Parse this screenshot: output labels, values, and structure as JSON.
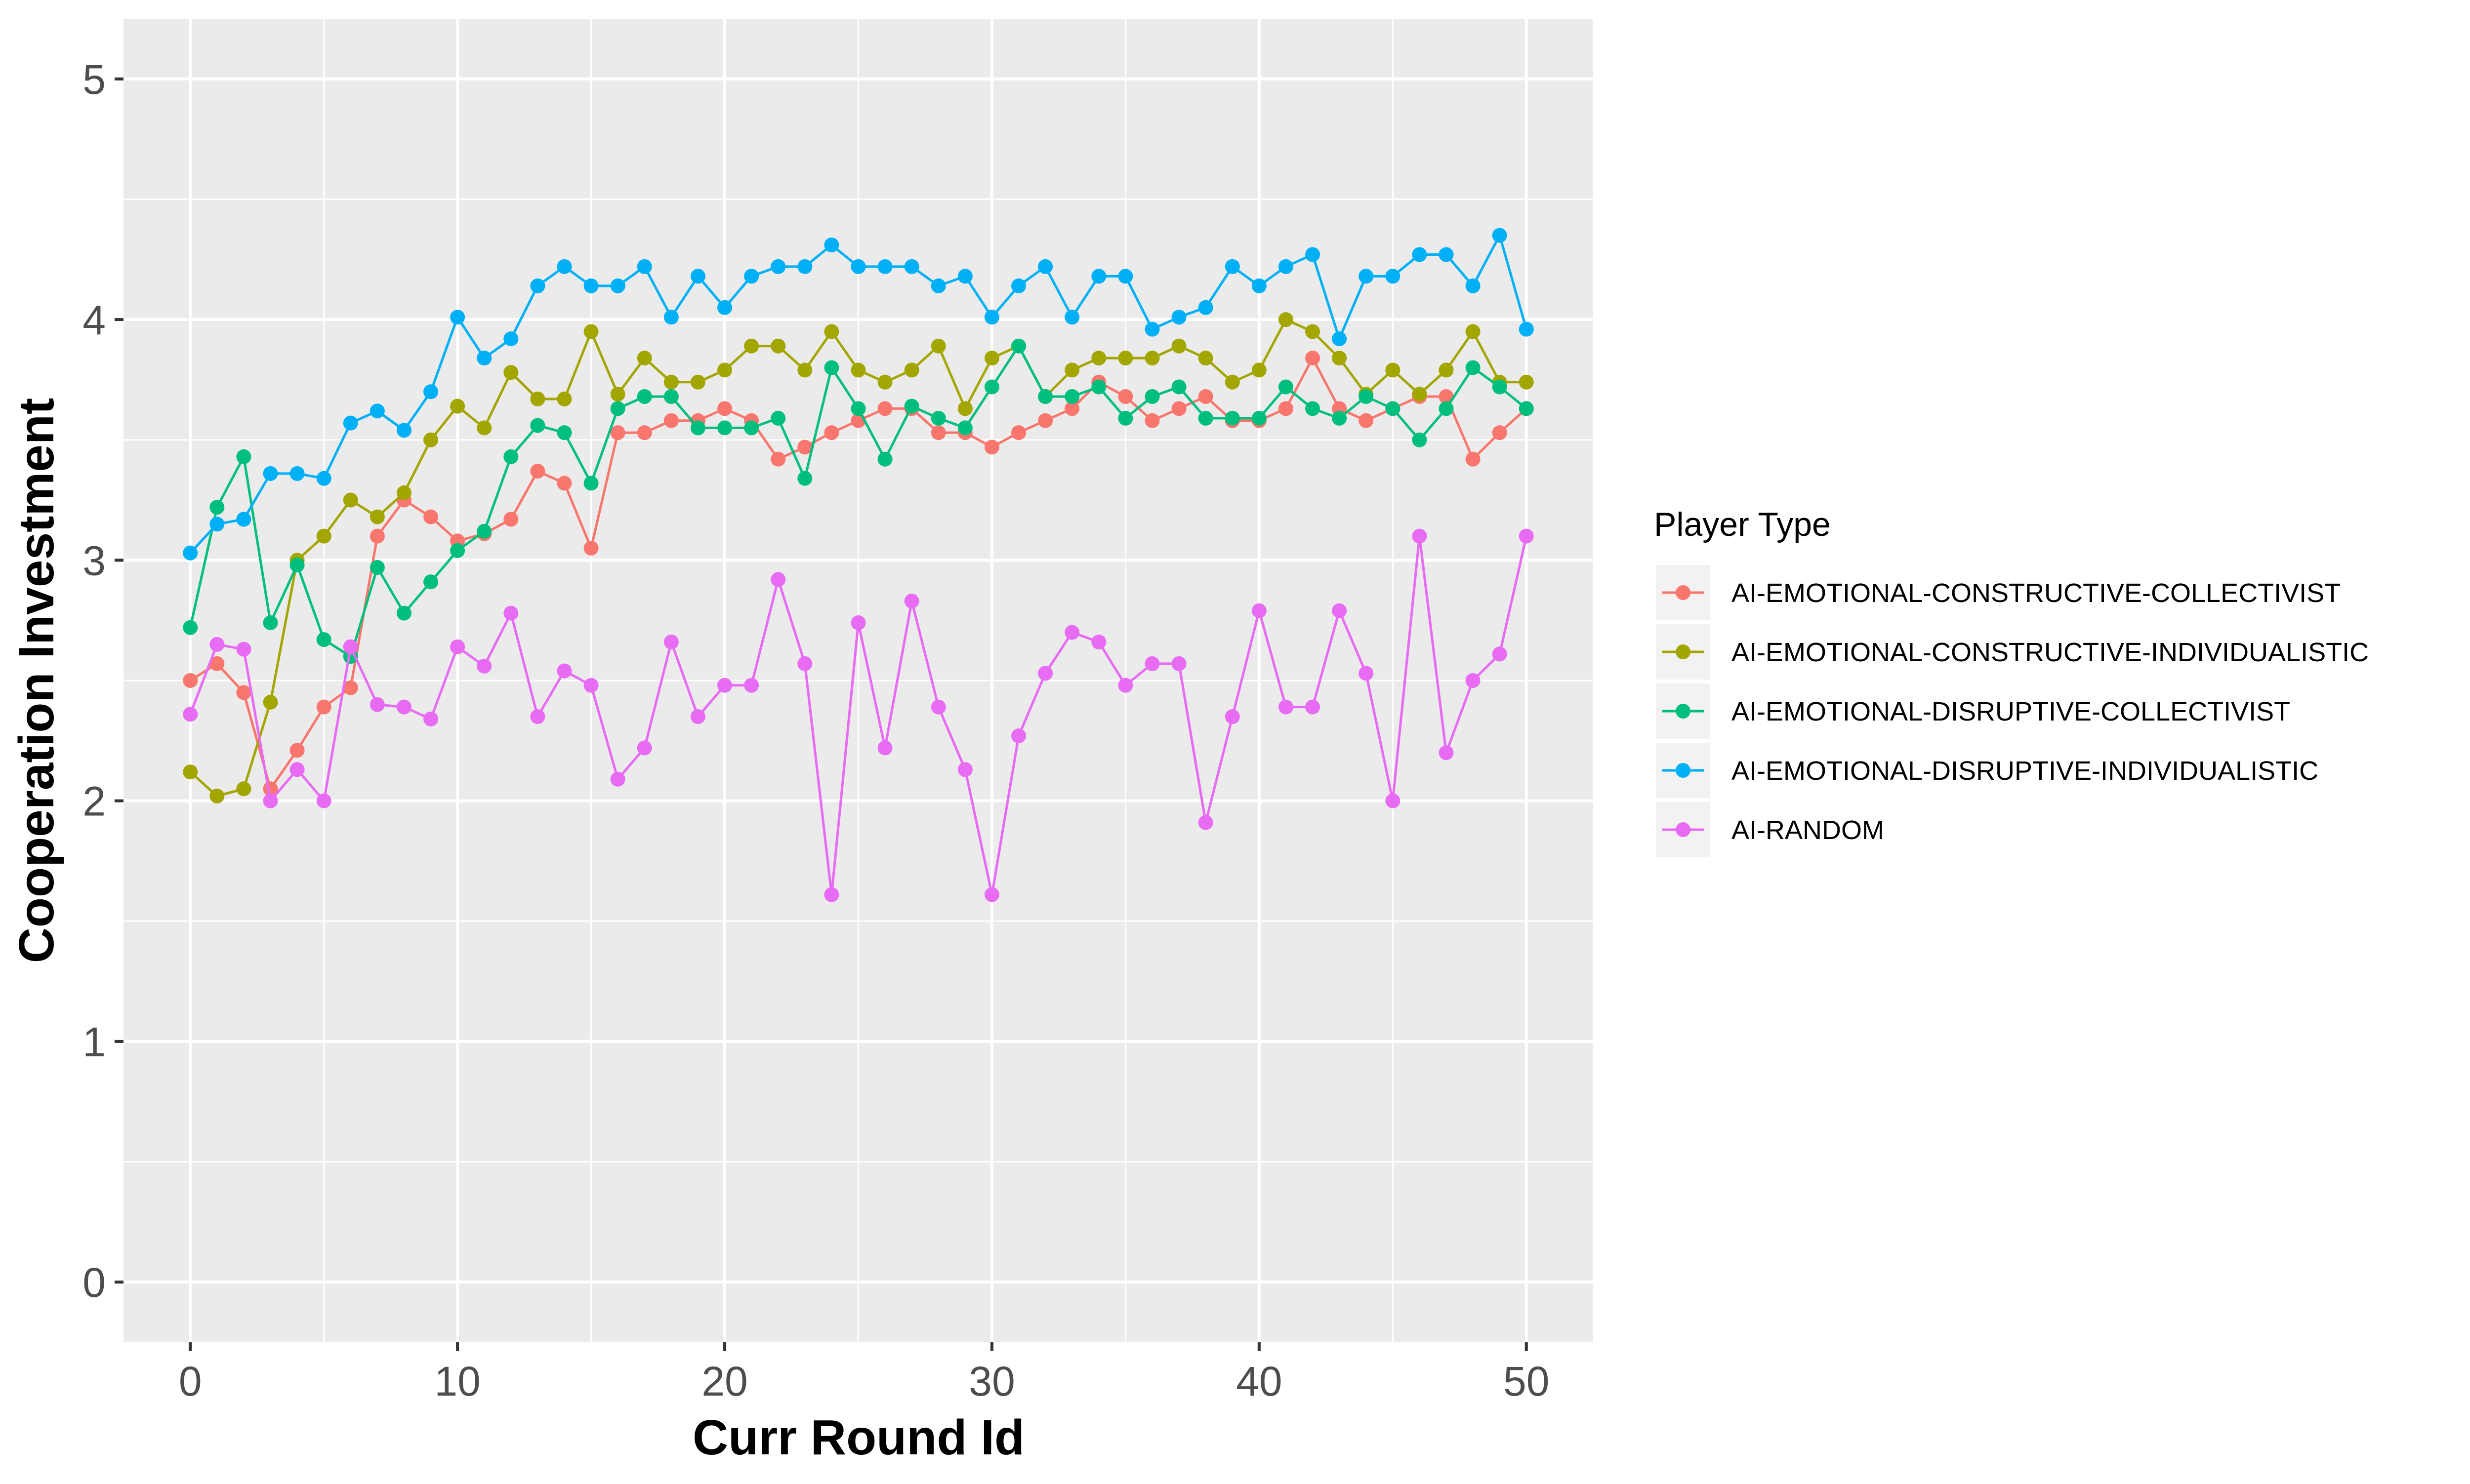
{
  "chart_data": {
    "type": "line",
    "xlabel": "Curr Round Id",
    "ylabel": "Cooperation Investment",
    "xlim": [
      -2.5,
      52.5
    ],
    "ylim": [
      -0.25,
      5.25
    ],
    "xticks": [
      0,
      10,
      20,
      30,
      40,
      50
    ],
    "yticks": [
      0,
      1,
      2,
      3,
      4,
      5
    ],
    "grid": true,
    "legend": {
      "title": "Player Type",
      "position": "right"
    },
    "x": [
      0,
      1,
      2,
      3,
      4,
      5,
      6,
      7,
      8,
      9,
      10,
      11,
      12,
      13,
      14,
      15,
      16,
      17,
      18,
      19,
      20,
      21,
      22,
      23,
      24,
      25,
      26,
      27,
      28,
      29,
      30,
      31,
      32,
      33,
      34,
      35,
      36,
      37,
      38,
      39,
      40,
      41,
      42,
      43,
      44,
      45,
      46,
      47,
      48,
      49,
      50
    ],
    "series": [
      {
        "name": "AI-EMOTIONAL-CONSTRUCTIVE-COLLECTIVIST",
        "color": "#F8766D",
        "values": [
          2.5,
          2.57,
          2.45,
          2.05,
          2.21,
          2.39,
          2.47,
          3.1,
          3.25,
          3.18,
          3.08,
          3.11,
          3.17,
          3.37,
          3.32,
          3.05,
          3.53,
          3.53,
          3.58,
          3.58,
          3.63,
          3.58,
          3.42,
          3.47,
          3.53,
          3.58,
          3.63,
          3.63,
          3.53,
          3.53,
          3.47,
          3.53,
          3.58,
          3.63,
          3.74,
          3.68,
          3.58,
          3.63,
          3.68,
          3.58,
          3.58,
          3.63,
          3.84,
          3.63,
          3.58,
          3.63,
          3.68,
          3.68,
          3.42,
          3.53,
          3.63
        ]
      },
      {
        "name": "AI-EMOTIONAL-CONSTRUCTIVE-INDIVIDUALISTIC",
        "color": "#A3A500",
        "values": [
          2.12,
          2.02,
          2.05,
          2.41,
          3.0,
          3.1,
          3.25,
          3.18,
          3.28,
          3.5,
          3.64,
          3.55,
          3.78,
          3.67,
          3.67,
          3.95,
          3.69,
          3.84,
          3.74,
          3.74,
          3.79,
          3.89,
          3.89,
          3.79,
          3.95,
          3.79,
          3.74,
          3.79,
          3.89,
          3.63,
          3.84,
          3.89,
          3.68,
          3.79,
          3.84,
          3.84,
          3.84,
          3.89,
          3.84,
          3.74,
          3.79,
          4.0,
          3.95,
          3.84,
          3.69,
          3.79,
          3.69,
          3.79,
          3.95,
          3.74,
          3.74
        ]
      },
      {
        "name": "AI-EMOTIONAL-DISRUPTIVE-COLLECTIVIST",
        "color": "#00BF7D",
        "values": [
          2.72,
          3.22,
          3.43,
          2.74,
          2.98,
          2.67,
          2.6,
          2.97,
          2.78,
          2.91,
          3.04,
          3.12,
          3.43,
          3.56,
          3.53,
          3.32,
          3.63,
          3.68,
          3.68,
          3.55,
          3.55,
          3.55,
          3.59,
          3.34,
          3.8,
          3.63,
          3.42,
          3.64,
          3.59,
          3.55,
          3.72,
          3.89,
          3.68,
          3.68,
          3.72,
          3.59,
          3.68,
          3.72,
          3.59,
          3.59,
          3.59,
          3.72,
          3.63,
          3.59,
          3.68,
          3.63,
          3.5,
          3.63,
          3.8,
          3.72,
          3.63
        ]
      },
      {
        "name": "AI-EMOTIONAL-DISRUPTIVE-INDIVIDUALISTIC",
        "color": "#00B0F6",
        "values": [
          3.03,
          3.15,
          3.17,
          3.36,
          3.36,
          3.34,
          3.57,
          3.62,
          3.54,
          3.7,
          4.01,
          3.84,
          3.92,
          4.14,
          4.22,
          4.14,
          4.14,
          4.22,
          4.01,
          4.18,
          4.05,
          4.18,
          4.22,
          4.22,
          4.31,
          4.22,
          4.22,
          4.22,
          4.14,
          4.18,
          4.01,
          4.14,
          4.22,
          4.01,
          4.18,
          4.18,
          3.96,
          4.01,
          4.05,
          4.22,
          4.14,
          4.22,
          4.27,
          3.92,
          4.18,
          4.18,
          4.27,
          4.27,
          4.14,
          4.35,
          3.96
        ]
      },
      {
        "name": "AI-RANDOM",
        "color": "#E76BF3",
        "values": [
          2.36,
          2.65,
          2.63,
          2.0,
          2.13,
          2.0,
          2.64,
          2.4,
          2.39,
          2.34,
          2.64,
          2.56,
          2.78,
          2.35,
          2.54,
          2.48,
          2.09,
          2.22,
          2.66,
          2.35,
          2.48,
          2.48,
          2.92,
          2.57,
          1.61,
          2.74,
          2.22,
          2.83,
          2.39,
          2.13,
          1.61,
          2.27,
          2.53,
          2.7,
          2.66,
          2.48,
          2.57,
          2.57,
          1.91,
          2.35,
          2.79,
          2.39,
          2.39,
          2.79,
          2.53,
          2.0,
          3.1,
          2.2,
          2.5,
          2.61,
          3.1
        ]
      }
    ]
  }
}
